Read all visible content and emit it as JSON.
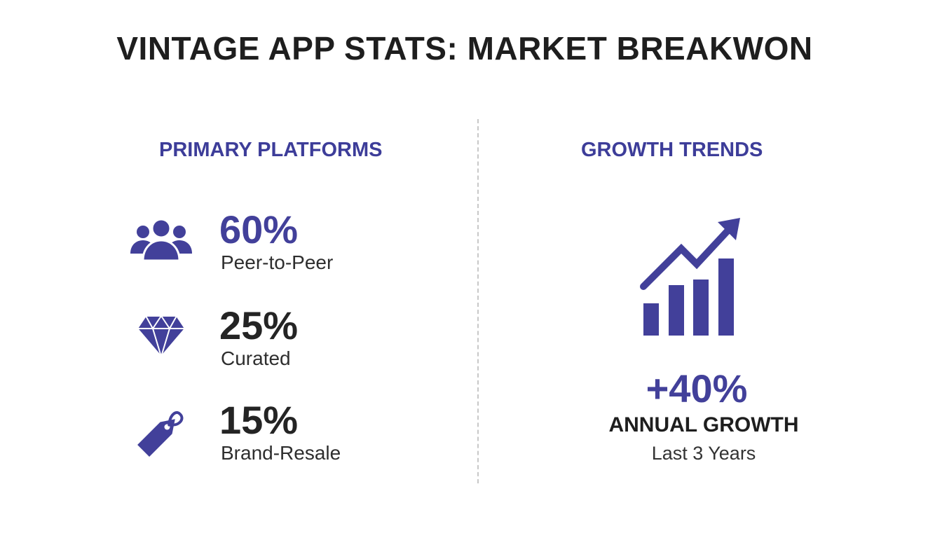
{
  "title": "VINTAGE APP STATS: MARKET BREAKWON",
  "colors": {
    "accent": "#42409a",
    "heading": "#3d3d99",
    "text": "#242424",
    "divider": "#c8c8c8"
  },
  "primary_platforms": {
    "heading": "PRIMARY PLATFORMS",
    "items": [
      {
        "value": "60%",
        "label": "Peer-to-Peer",
        "icon": "people-group-icon",
        "highlight": true
      },
      {
        "value": "25%",
        "label": "Curated",
        "icon": "diamond-icon",
        "highlight": false
      },
      {
        "value": "15%",
        "label": "Brand-Resale",
        "icon": "price-tag-icon",
        "highlight": false
      }
    ]
  },
  "growth_trends": {
    "heading": "GROWTH TRENDS",
    "icon": "growth-bar-chart-icon",
    "value": "+40%",
    "label": "ANNUAL GROWTH",
    "sublabel": "Last 3 Years"
  }
}
